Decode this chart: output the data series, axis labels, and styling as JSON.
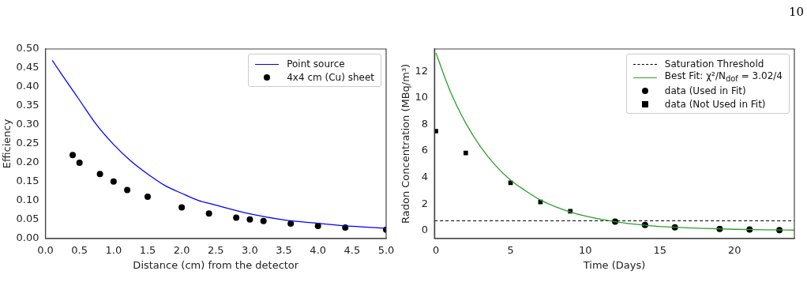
{
  "chart_data": [
    {
      "type": "line",
      "xlabel": "Distance (cm) from the detector",
      "ylabel": "Efficiency",
      "xlim": [
        0,
        5
      ],
      "xticks": [
        {
          "value": 0,
          "label": "0.0"
        },
        0.5,
        {
          "value": 1,
          "label": "1.0"
        },
        1.5,
        {
          "value": 2,
          "label": "2.0"
        },
        2.5,
        {
          "value": 3,
          "label": "3.0"
        },
        3.5,
        {
          "value": 4,
          "label": "4.0"
        },
        4.5,
        {
          "value": 5,
          "label": "5.0"
        }
      ],
      "ylim": [
        0,
        0.5
      ],
      "yticks": [
        {
          "value": 0,
          "label": "0.00"
        },
        0.05,
        {
          "value": 0.1,
          "label": "0.10"
        },
        0.15,
        {
          "value": 0.2,
          "label": "0.20"
        },
        0.25,
        {
          "value": 0.3,
          "label": "0.30"
        },
        0.35,
        {
          "value": 0.4,
          "label": "0.40"
        },
        0.45,
        {
          "value": 0.5,
          "label": "0.50"
        }
      ],
      "legend": "top right",
      "series": [
        {
          "name": "Point source",
          "type": "line",
          "color": "#0000ff",
          "marker": "none",
          "x": [
            0.1,
            0.25,
            0.5,
            0.75,
            1.0,
            1.25,
            1.5,
            1.75,
            2.0,
            2.25,
            2.5,
            3.0,
            3.5,
            4.0,
            4.5,
            5.0
          ],
          "values": [
            0.47,
            0.43,
            0.365,
            0.3,
            0.248,
            0.205,
            0.17,
            0.14,
            0.119,
            0.1,
            0.088,
            0.065,
            0.049,
            0.04,
            0.032,
            0.027
          ]
        },
        {
          "name": "4x4 cm (Cu) sheet",
          "type": "scatter",
          "color": "#000000",
          "marker": "circle",
          "x": [
            0.4,
            0.5,
            0.8,
            1.0,
            1.2,
            1.5,
            2.0,
            2.4,
            2.8,
            3.0,
            3.2,
            3.6,
            4.0,
            4.4,
            5.0
          ],
          "values": [
            0.22,
            0.2,
            0.17,
            0.15,
            0.128,
            0.11,
            0.082,
            0.066,
            0.055,
            0.05,
            0.046,
            0.039,
            0.033,
            0.029,
            0.023
          ]
        }
      ]
    },
    {
      "type": "line",
      "xlabel": "Time (Days)",
      "ylabel": "Radon Concentration (MBq/m³)",
      "xlim": [
        -0.1,
        24
      ],
      "xticks": [
        0,
        5,
        10,
        15,
        20
      ],
      "ylim": [
        -0.6,
        13.7
      ],
      "yticks": [
        0,
        2,
        4,
        6,
        8,
        10,
        12
      ],
      "legend": "top right",
      "annotations": [
        "10"
      ],
      "ref_lines": [
        {
          "axis": "y",
          "value": 0.73,
          "label": "Saturation Threshold",
          "color": "#000000",
          "line_style": "dashed"
        }
      ],
      "series": [
        {
          "name": "Best Fit: χ²/N$_{dof}$ = 3.02/4",
          "type": "line",
          "color": "#2ca02c",
          "marker": "none",
          "x": [
            0,
            1,
            2,
            3,
            4,
            5,
            6,
            7,
            8,
            9,
            10,
            12,
            14,
            16,
            18,
            20,
            22,
            24
          ],
          "values": [
            13.4,
            10.4,
            8.1,
            6.3,
            4.9,
            3.8,
            3.0,
            2.3,
            1.8,
            1.4,
            1.1,
            0.66,
            0.4,
            0.24,
            0.15,
            0.09,
            0.05,
            0.03
          ]
        },
        {
          "name": "data (Used in Fit)",
          "type": "scatter",
          "color": "#000000",
          "marker": "circle",
          "x": [
            12,
            14,
            16,
            19,
            21,
            23
          ],
          "values": [
            0.67,
            0.42,
            0.24,
            0.12,
            0.07,
            0.03
          ]
        },
        {
          "name": "data (Not Used in Fit)",
          "type": "scatter",
          "color": "#000000",
          "marker": "square",
          "x": [
            0,
            2,
            5,
            7,
            9
          ],
          "values": [
            7.5,
            5.85,
            3.6,
            2.15,
            1.45
          ]
        }
      ]
    }
  ]
}
